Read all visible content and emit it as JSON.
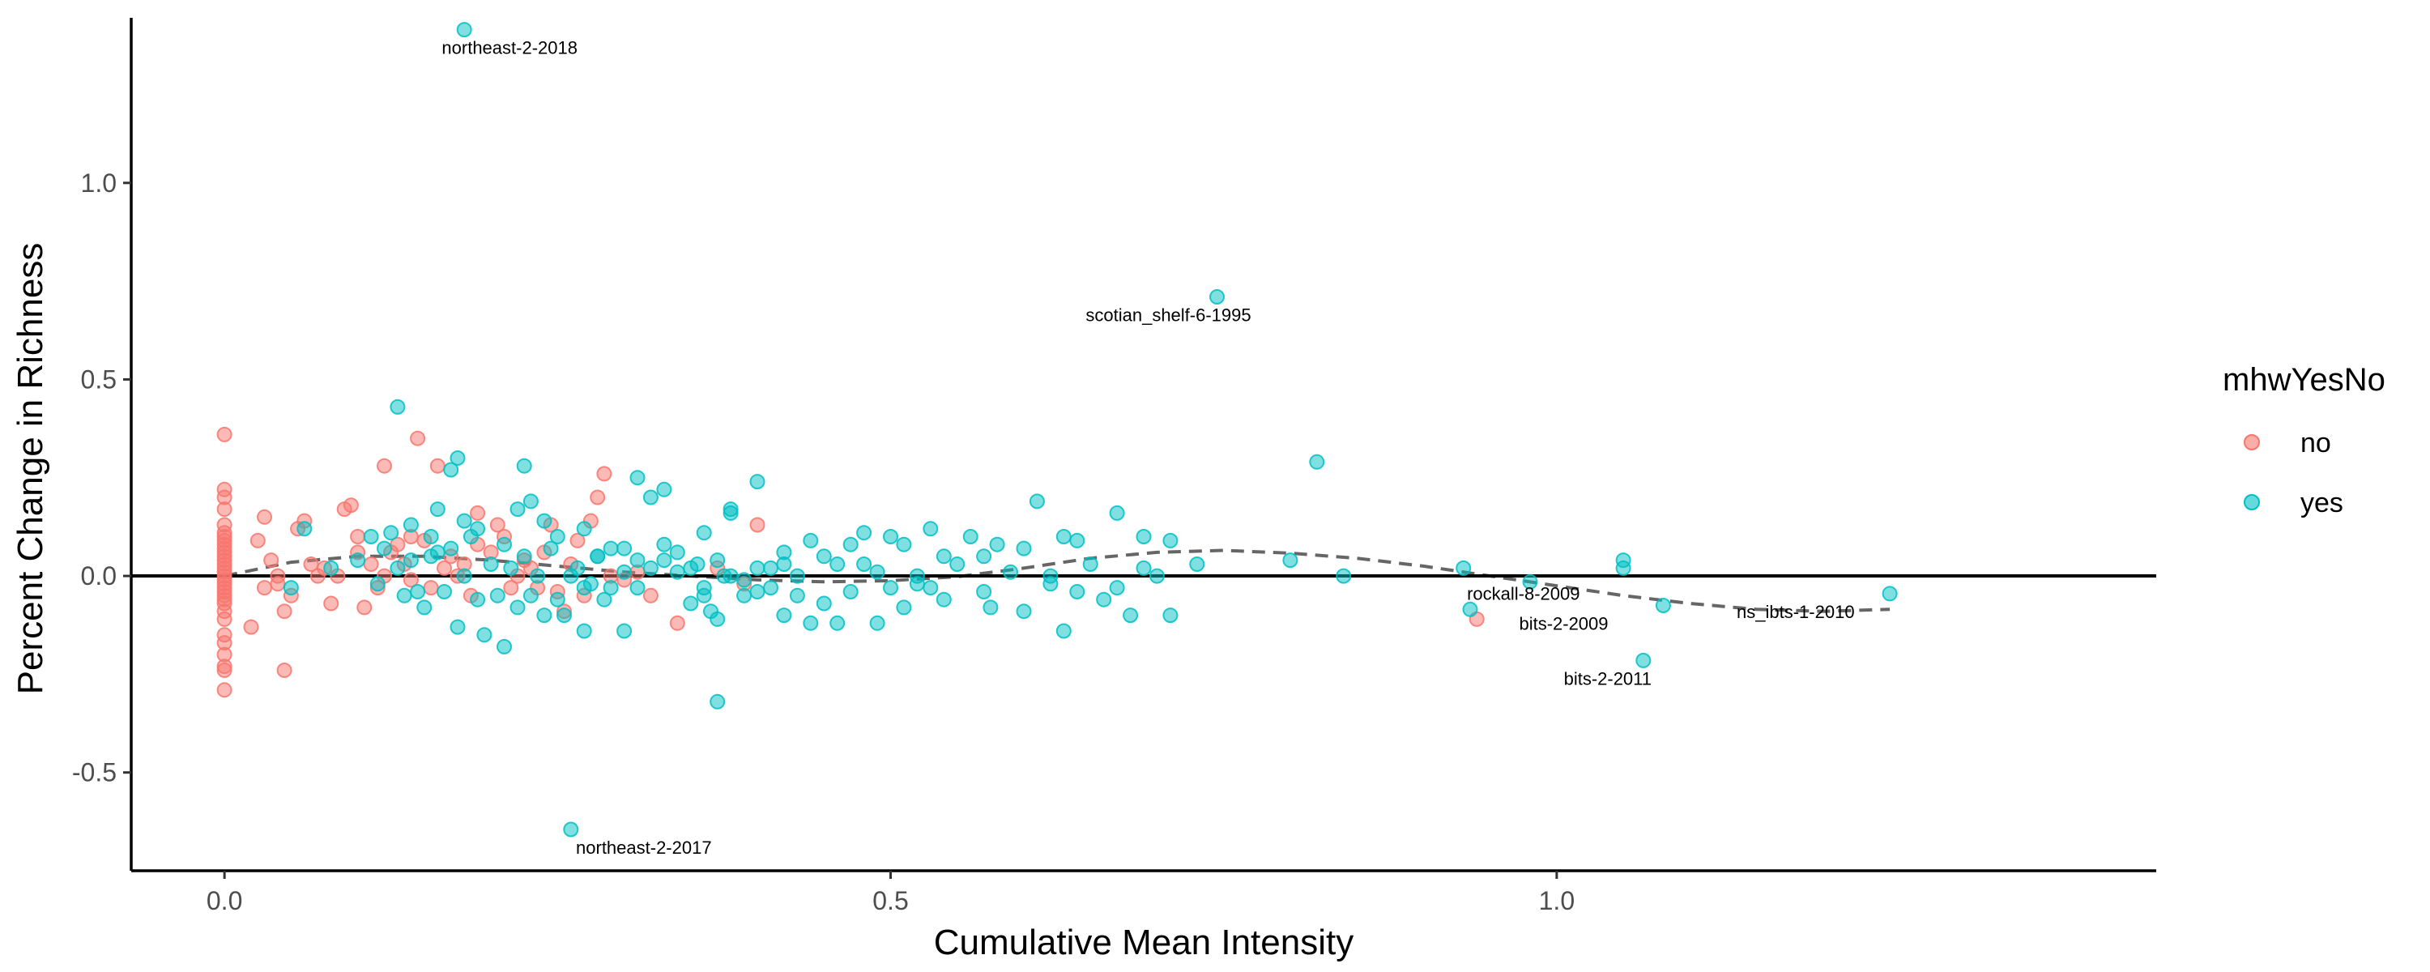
{
  "chart_data": {
    "type": "scatter",
    "xlabel": "Cumulative Mean Intensity",
    "ylabel": "Percent Change in Richness",
    "xlim": [
      -0.07,
      1.45
    ],
    "ylim": [
      -0.75,
      1.42
    ],
    "xticks": [
      0.0,
      0.5,
      1.0
    ],
    "xtick_labels": [
      "0.0",
      "0.5",
      "1.0"
    ],
    "yticks": [
      -0.5,
      0.0,
      0.5,
      1.0
    ],
    "ytick_labels": [
      "-0.5",
      "0.0",
      "0.5",
      "1.0"
    ],
    "grid": false,
    "hline": 0.0,
    "legend": {
      "title": "mhwYesNo",
      "placement": "right",
      "entries": [
        {
          "label": "no",
          "color": "#F8766D"
        },
        {
          "label": "yes",
          "color": "#00BFC4"
        }
      ]
    },
    "trend": {
      "style": "dashed",
      "color": "#666666",
      "x": [
        0.0,
        0.05,
        0.1,
        0.15,
        0.2,
        0.25,
        0.3,
        0.35,
        0.4,
        0.45,
        0.5,
        0.55,
        0.6,
        0.65,
        0.7,
        0.75,
        0.8,
        0.85,
        0.9,
        0.95,
        1.0,
        1.05,
        1.1,
        1.15,
        1.2,
        1.25
      ],
      "y": [
        0.0,
        0.035,
        0.05,
        0.05,
        0.04,
        0.025,
        0.01,
        0.0,
        -0.01,
        -0.015,
        -0.012,
        -0.002,
        0.02,
        0.045,
        0.06,
        0.065,
        0.058,
        0.045,
        0.025,
        0.0,
        -0.025,
        -0.05,
        -0.07,
        -0.085,
        -0.09,
        -0.085
      ]
    },
    "annotations": [
      {
        "text": "northeast-2-2018",
        "x": 0.18,
        "y": 1.39
      },
      {
        "text": "scotian_shelf-6-1995",
        "x": 0.745,
        "y": 0.71
      },
      {
        "text": "rockall-8-2009",
        "x": 0.975,
        "y": -0.015
      },
      {
        "text": "bits-2-2009",
        "x": 1.015,
        "y": -0.075
      },
      {
        "text": "ns_ibts-1-2010",
        "x": 1.155,
        "y": -0.045
      },
      {
        "text": "bits-2-2011",
        "x": 1.065,
        "y": -0.215
      },
      {
        "text": "northeast-2-2017",
        "x": 0.26,
        "y": -0.645
      }
    ],
    "series": [
      {
        "name": "no",
        "color": "#F8766D",
        "points": [
          [
            0,
            0.36
          ],
          [
            0,
            0.22
          ],
          [
            0,
            0.2
          ],
          [
            0,
            0.17
          ],
          [
            0,
            0.13
          ],
          [
            0,
            0.11
          ],
          [
            0,
            0.1
          ],
          [
            0,
            0.09
          ],
          [
            0,
            0.08
          ],
          [
            0,
            0.07
          ],
          [
            0,
            0.06
          ],
          [
            0,
            0.05
          ],
          [
            0,
            0.04
          ],
          [
            0,
            0.03
          ],
          [
            0,
            0.02
          ],
          [
            0,
            0.01
          ],
          [
            0,
            0.0
          ],
          [
            0,
            -0.01
          ],
          [
            0,
            -0.02
          ],
          [
            0,
            -0.03
          ],
          [
            0,
            -0.04
          ],
          [
            0,
            -0.05
          ],
          [
            0,
            -0.06
          ],
          [
            0,
            -0.07
          ],
          [
            0,
            -0.09
          ],
          [
            0,
            -0.11
          ],
          [
            0,
            -0.15
          ],
          [
            0,
            -0.17
          ],
          [
            0,
            -0.2
          ],
          [
            0,
            -0.23
          ],
          [
            0,
            -0.24
          ],
          [
            0,
            -0.29
          ],
          [
            0.02,
            -0.13
          ],
          [
            0.025,
            0.09
          ],
          [
            0.03,
            0.15
          ],
          [
            0.03,
            -0.03
          ],
          [
            0.035,
            0.04
          ],
          [
            0.04,
            0.0
          ],
          [
            0.04,
            -0.02
          ],
          [
            0.045,
            -0.09
          ],
          [
            0.045,
            -0.24
          ],
          [
            0.05,
            -0.05
          ],
          [
            0.055,
            0.12
          ],
          [
            0.06,
            0.14
          ],
          [
            0.065,
            0.03
          ],
          [
            0.07,
            0.0
          ],
          [
            0.075,
            0.02
          ],
          [
            0.08,
            -0.07
          ],
          [
            0.085,
            0.0
          ],
          [
            0.09,
            0.17
          ],
          [
            0.095,
            0.18
          ],
          [
            0.1,
            0.1
          ],
          [
            0.1,
            0.06
          ],
          [
            0.105,
            -0.08
          ],
          [
            0.11,
            0.03
          ],
          [
            0.115,
            -0.03
          ],
          [
            0.12,
            0.28
          ],
          [
            0.12,
            0.0
          ],
          [
            0.125,
            0.06
          ],
          [
            0.13,
            0.08
          ],
          [
            0.135,
            0.03
          ],
          [
            0.14,
            0.1
          ],
          [
            0.14,
            -0.01
          ],
          [
            0.145,
            0.35
          ],
          [
            0.15,
            0.09
          ],
          [
            0.155,
            -0.03
          ],
          [
            0.16,
            0.28
          ],
          [
            0.165,
            0.02
          ],
          [
            0.17,
            0.05
          ],
          [
            0.175,
            0.0
          ],
          [
            0.18,
            0.03
          ],
          [
            0.185,
            -0.05
          ],
          [
            0.19,
            0.16
          ],
          [
            0.19,
            0.08
          ],
          [
            0.2,
            0.06
          ],
          [
            0.205,
            0.13
          ],
          [
            0.21,
            0.1
          ],
          [
            0.215,
            -0.03
          ],
          [
            0.22,
            0.0
          ],
          [
            0.225,
            0.04
          ],
          [
            0.23,
            0.02
          ],
          [
            0.235,
            -0.03
          ],
          [
            0.24,
            0.06
          ],
          [
            0.245,
            0.13
          ],
          [
            0.25,
            -0.04
          ],
          [
            0.255,
            -0.09
          ],
          [
            0.26,
            0.03
          ],
          [
            0.265,
            0.09
          ],
          [
            0.27,
            -0.05
          ],
          [
            0.275,
            0.14
          ],
          [
            0.28,
            0.2
          ],
          [
            0.285,
            0.26
          ],
          [
            0.29,
            0.0
          ],
          [
            0.3,
            -0.01
          ],
          [
            0.31,
            0.01
          ],
          [
            0.32,
            -0.05
          ],
          [
            0.34,
            -0.12
          ],
          [
            0.37,
            0.02
          ],
          [
            0.39,
            -0.02
          ],
          [
            0.4,
            0.13
          ],
          [
            0.94,
            -0.11
          ]
        ]
      },
      {
        "name": "yes",
        "color": "#00BFC4",
        "points": [
          [
            0.18,
            1.39
          ],
          [
            0.26,
            -0.645
          ],
          [
            0.745,
            0.71
          ],
          [
            0.82,
            0.29
          ],
          [
            0.13,
            0.43
          ],
          [
            0.175,
            0.3
          ],
          [
            0.225,
            0.28
          ],
          [
            0.31,
            0.25
          ],
          [
            0.32,
            0.2
          ],
          [
            0.33,
            0.22
          ],
          [
            0.4,
            0.24
          ],
          [
            0.38,
            0.17
          ],
          [
            0.17,
            0.27
          ],
          [
            0.23,
            0.19
          ],
          [
            0.14,
            0.13
          ],
          [
            0.155,
            0.1
          ],
          [
            0.16,
            0.17
          ],
          [
            0.18,
            0.14
          ],
          [
            0.19,
            0.12
          ],
          [
            0.21,
            0.08
          ],
          [
            0.22,
            0.17
          ],
          [
            0.24,
            0.14
          ],
          [
            0.25,
            0.1
          ],
          [
            0.27,
            0.12
          ],
          [
            0.27,
            -0.14
          ],
          [
            0.28,
            0.05
          ],
          [
            0.29,
            0.07
          ],
          [
            0.3,
            0.07
          ],
          [
            0.3,
            -0.14
          ],
          [
            0.31,
            0.04
          ],
          [
            0.32,
            0.02
          ],
          [
            0.33,
            0.08
          ],
          [
            0.34,
            0.06
          ],
          [
            0.35,
            0.02
          ],
          [
            0.36,
            0.11
          ],
          [
            0.36,
            -0.03
          ],
          [
            0.37,
            0.04
          ],
          [
            0.37,
            -0.32
          ],
          [
            0.38,
            0.16
          ],
          [
            0.38,
            0.0
          ],
          [
            0.39,
            -0.01
          ],
          [
            0.4,
            0.02
          ],
          [
            0.41,
            -0.03
          ],
          [
            0.42,
            0.03
          ],
          [
            0.42,
            -0.1
          ],
          [
            0.43,
            0.0
          ],
          [
            0.44,
            0.09
          ],
          [
            0.44,
            -0.12
          ],
          [
            0.45,
            0.05
          ],
          [
            0.45,
            -0.07
          ],
          [
            0.46,
            -0.12
          ],
          [
            0.47,
            0.08
          ],
          [
            0.47,
            -0.04
          ],
          [
            0.48,
            0.11
          ],
          [
            0.48,
            0.03
          ],
          [
            0.49,
            0.01
          ],
          [
            0.49,
            -0.12
          ],
          [
            0.5,
            0.1
          ],
          [
            0.5,
            -0.03
          ],
          [
            0.51,
            0.08
          ],
          [
            0.51,
            -0.08
          ],
          [
            0.52,
            0.0
          ],
          [
            0.53,
            0.12
          ],
          [
            0.53,
            -0.03
          ],
          [
            0.54,
            0.05
          ],
          [
            0.54,
            -0.06
          ],
          [
            0.56,
            0.1
          ],
          [
            0.57,
            0.05
          ],
          [
            0.57,
            -0.04
          ],
          [
            0.58,
            0.08
          ],
          [
            0.59,
            0.01
          ],
          [
            0.6,
            0.07
          ],
          [
            0.6,
            -0.09
          ],
          [
            0.61,
            0.19
          ],
          [
            0.62,
            0.0
          ],
          [
            0.63,
            0.1
          ],
          [
            0.63,
            -0.14
          ],
          [
            0.64,
            0.09
          ],
          [
            0.64,
            -0.04
          ],
          [
            0.65,
            0.03
          ],
          [
            0.66,
            -0.06
          ],
          [
            0.67,
            0.16
          ],
          [
            0.67,
            -0.03
          ],
          [
            0.68,
            -0.1
          ],
          [
            0.69,
            0.02
          ],
          [
            0.69,
            0.1
          ],
          [
            0.7,
            0.0
          ],
          [
            0.71,
            0.09
          ],
          [
            0.71,
            -0.1
          ],
          [
            0.73,
            0.03
          ],
          [
            0.8,
            0.04
          ],
          [
            0.84,
            0.0
          ],
          [
            0.93,
            0.02
          ],
          [
            0.935,
            -0.085
          ],
          [
            0.98,
            -0.015
          ],
          [
            1.05,
            0.04
          ],
          [
            1.05,
            0.02
          ],
          [
            1.08,
            -0.075
          ],
          [
            1.065,
            -0.215
          ],
          [
            1.25,
            -0.045
          ],
          [
            0.05,
            -0.03
          ],
          [
            0.06,
            0.12
          ],
          [
            0.08,
            0.02
          ],
          [
            0.1,
            0.04
          ],
          [
            0.11,
            0.1
          ],
          [
            0.115,
            -0.02
          ],
          [
            0.12,
            0.07
          ],
          [
            0.125,
            0.11
          ],
          [
            0.13,
            0.02
          ],
          [
            0.135,
            -0.05
          ],
          [
            0.14,
            0.04
          ],
          [
            0.145,
            -0.04
          ],
          [
            0.15,
            -0.08
          ],
          [
            0.155,
            0.05
          ],
          [
            0.16,
            0.06
          ],
          [
            0.165,
            -0.04
          ],
          [
            0.17,
            0.07
          ],
          [
            0.175,
            -0.13
          ],
          [
            0.18,
            0.0
          ],
          [
            0.185,
            0.1
          ],
          [
            0.19,
            -0.06
          ],
          [
            0.195,
            -0.15
          ],
          [
            0.2,
            0.03
          ],
          [
            0.205,
            -0.05
          ],
          [
            0.21,
            -0.18
          ],
          [
            0.215,
            0.02
          ],
          [
            0.22,
            -0.08
          ],
          [
            0.225,
            0.05
          ],
          [
            0.23,
            -0.05
          ],
          [
            0.235,
            0.0
          ],
          [
            0.24,
            -0.1
          ],
          [
            0.245,
            0.07
          ],
          [
            0.25,
            -0.06
          ],
          [
            0.255,
            -0.1
          ],
          [
            0.26,
            0.0
          ],
          [
            0.265,
            0.02
          ],
          [
            0.27,
            -0.03
          ],
          [
            0.275,
            -0.02
          ],
          [
            0.28,
            0.05
          ],
          [
            0.285,
            -0.06
          ],
          [
            0.29,
            -0.03
          ],
          [
            0.3,
            0.01
          ],
          [
            0.31,
            -0.03
          ],
          [
            0.33,
            0.04
          ],
          [
            0.34,
            0.01
          ],
          [
            0.35,
            -0.07
          ],
          [
            0.355,
            0.03
          ],
          [
            0.36,
            -0.05
          ],
          [
            0.365,
            -0.09
          ],
          [
            0.37,
            -0.11
          ],
          [
            0.375,
            0.0
          ],
          [
            0.39,
            -0.05
          ],
          [
            0.4,
            -0.04
          ],
          [
            0.41,
            0.02
          ],
          [
            0.42,
            0.06
          ],
          [
            0.43,
            -0.05
          ],
          [
            0.46,
            0.03
          ],
          [
            0.52,
            -0.02
          ],
          [
            0.55,
            0.03
          ],
          [
            0.575,
            -0.08
          ],
          [
            0.62,
            -0.02
          ]
        ]
      }
    ]
  }
}
